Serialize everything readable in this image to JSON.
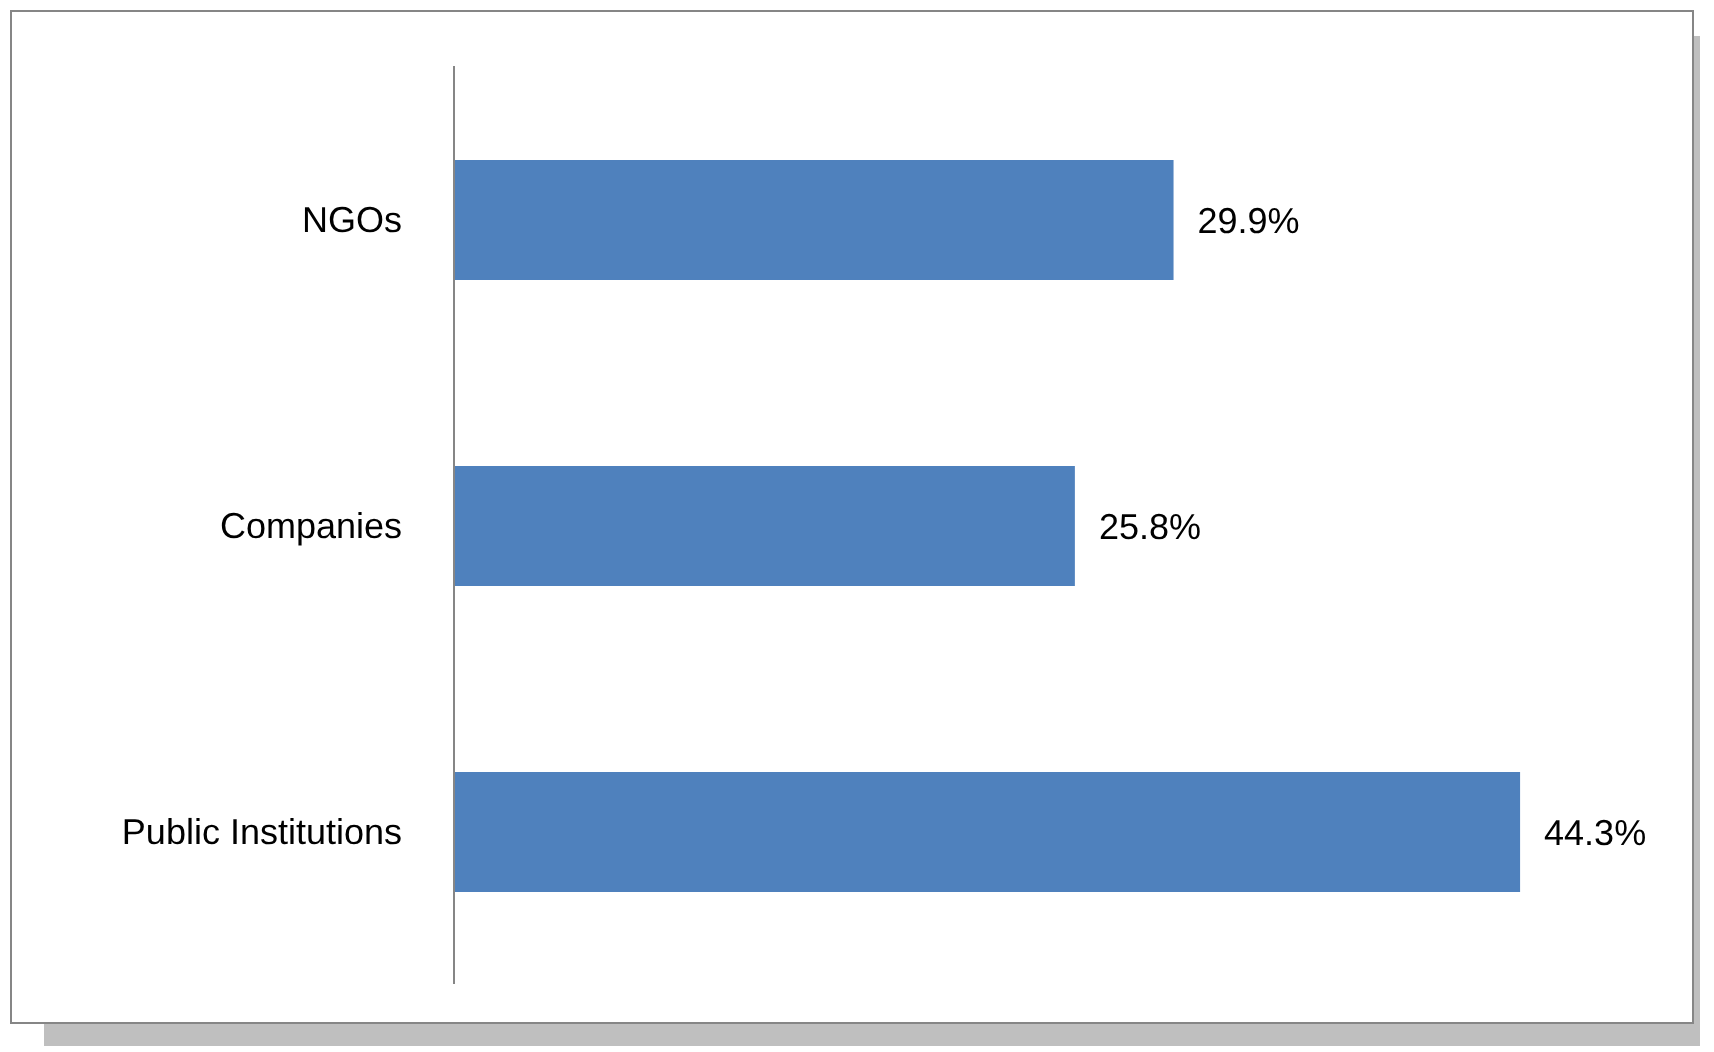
{
  "chart_data": {
    "type": "bar",
    "orientation": "horizontal",
    "categories": [
      "NGOs",
      "Companies",
      "Public Institutions"
    ],
    "values": [
      29.9,
      25.8,
      44.3
    ],
    "value_labels": [
      "29.9%",
      "25.8%",
      "44.3%"
    ],
    "color": "#4f81bd",
    "grid": false,
    "legend": false
  }
}
